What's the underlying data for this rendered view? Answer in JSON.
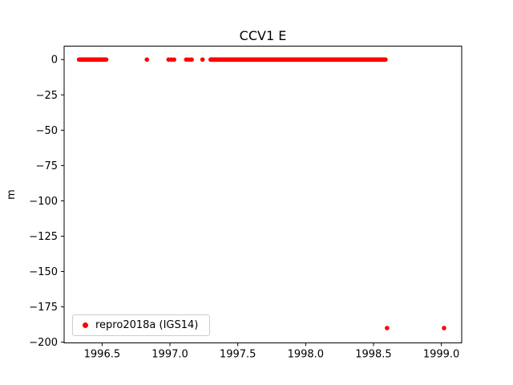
{
  "chart_data": {
    "type": "scatter",
    "title": "CCV1 E",
    "xlabel": "",
    "ylabel": "m",
    "legend": [
      {
        "label": "repro2018a (IGS14)",
        "color": "#ff0000",
        "marker": "dot"
      }
    ],
    "xlim": [
      1996.22,
      1999.15
    ],
    "ylim": [
      -200.5,
      9.5
    ],
    "xticks": [
      1996.5,
      1997.0,
      1997.5,
      1998.0,
      1998.5,
      1999.0
    ],
    "yticks": [
      0,
      -25,
      -50,
      -75,
      -100,
      -125,
      -150,
      -175,
      -200
    ],
    "grid": false,
    "legend_position": "lower left",
    "marker_color": "#ff0000",
    "marker_radius": 2.8,
    "series_name": "repro2018a (IGS14)",
    "series_segments": [
      {
        "y": 0,
        "x_start": 1996.33,
        "x_end": 1996.53,
        "x_step": 0.005
      },
      {
        "y": 0,
        "x_start": 1996.99,
        "x_end": 1997.03,
        "x_step": 0.02
      },
      {
        "y": 0,
        "x_start": 1997.12,
        "x_end": 1997.16,
        "x_step": 0.02
      },
      {
        "y": 0,
        "x_start": 1997.3,
        "x_end": 1998.59,
        "x_step": 0.004
      }
    ],
    "isolated_points": [
      [
        1996.83,
        0
      ],
      [
        1997.24,
        0
      ],
      [
        1998.6,
        -190
      ],
      [
        1999.02,
        -190
      ]
    ]
  }
}
